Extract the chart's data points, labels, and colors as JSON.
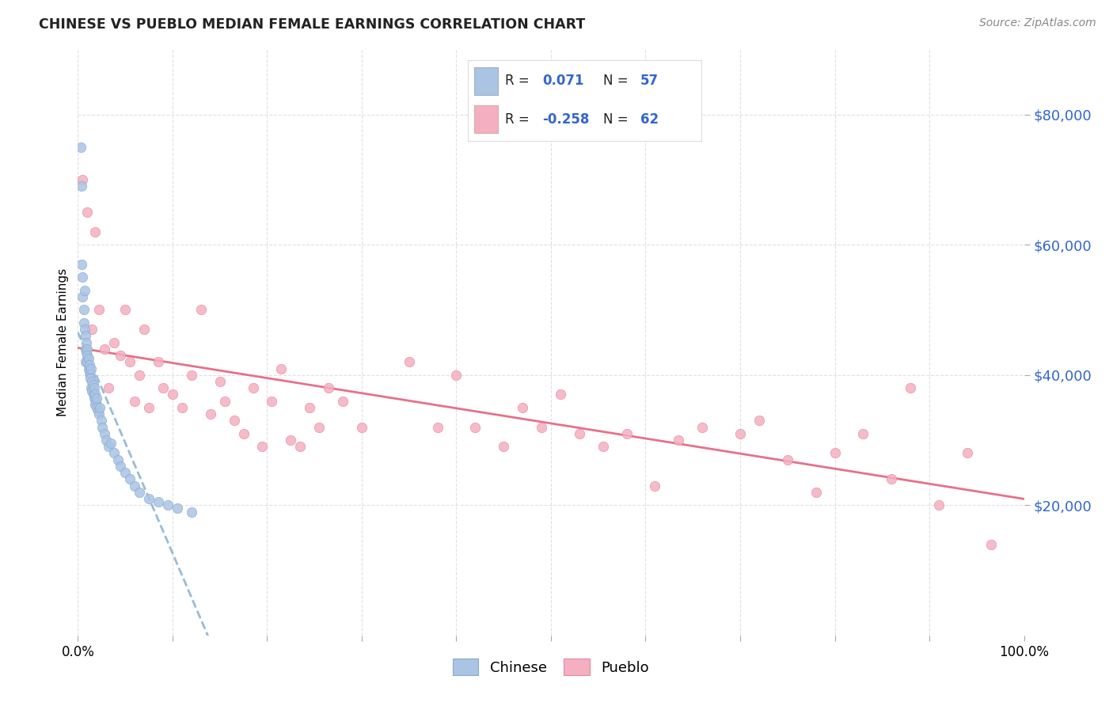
{
  "title": "CHINESE VS PUEBLO MEDIAN FEMALE EARNINGS CORRELATION CHART",
  "source": "Source: ZipAtlas.com",
  "ylabel": "Median Female Earnings",
  "y_ticks": [
    20000,
    40000,
    60000,
    80000
  ],
  "y_tick_labels": [
    "$20,000",
    "$40,000",
    "$60,000",
    "$80,000"
  ],
  "xlim": [
    0.0,
    1.0
  ],
  "ylim": [
    0,
    90000
  ],
  "chinese_color": "#aac4e4",
  "pueblo_color": "#f4b0c0",
  "chinese_edge": "#88aacc",
  "pueblo_edge": "#e888a0",
  "chinese_R": 0.071,
  "chinese_N": 57,
  "pueblo_R": -0.258,
  "pueblo_N": 62,
  "trend_blue_color": "#99bbd8",
  "trend_pink_color": "#e8708a",
  "legend_label_chinese": "Chinese",
  "legend_label_pueblo": "Pueblo",
  "chinese_x": [
    0.003,
    0.004,
    0.004,
    0.005,
    0.005,
    0.006,
    0.006,
    0.007,
    0.007,
    0.008,
    0.008,
    0.008,
    0.009,
    0.009,
    0.01,
    0.01,
    0.01,
    0.011,
    0.011,
    0.012,
    0.012,
    0.013,
    0.013,
    0.014,
    0.014,
    0.015,
    0.015,
    0.016,
    0.016,
    0.017,
    0.017,
    0.018,
    0.018,
    0.019,
    0.02,
    0.02,
    0.021,
    0.022,
    0.023,
    0.025,
    0.026,
    0.028,
    0.03,
    0.032,
    0.035,
    0.038,
    0.042,
    0.045,
    0.05,
    0.055,
    0.06,
    0.065,
    0.075,
    0.085,
    0.095,
    0.105,
    0.12
  ],
  "chinese_y": [
    75000,
    69000,
    57000,
    55000,
    52000,
    50000,
    48000,
    47000,
    53000,
    46000,
    44000,
    42000,
    43500,
    45000,
    44000,
    43000,
    42000,
    41000,
    42500,
    40500,
    41500,
    40000,
    39500,
    41000,
    38000,
    39000,
    37500,
    38500,
    37000,
    36500,
    38000,
    37000,
    35500,
    36000,
    35000,
    36500,
    34500,
    34000,
    35000,
    33000,
    32000,
    31000,
    30000,
    29000,
    29500,
    28000,
    27000,
    26000,
    25000,
    24000,
    23000,
    22000,
    21000,
    20500,
    20000,
    19500,
    19000
  ],
  "pueblo_x": [
    0.005,
    0.01,
    0.015,
    0.018,
    0.022,
    0.028,
    0.032,
    0.038,
    0.045,
    0.05,
    0.055,
    0.06,
    0.065,
    0.07,
    0.075,
    0.085,
    0.09,
    0.1,
    0.11,
    0.12,
    0.13,
    0.14,
    0.15,
    0.155,
    0.165,
    0.175,
    0.185,
    0.195,
    0.205,
    0.215,
    0.225,
    0.235,
    0.245,
    0.255,
    0.265,
    0.28,
    0.3,
    0.35,
    0.38,
    0.4,
    0.42,
    0.45,
    0.47,
    0.49,
    0.51,
    0.53,
    0.555,
    0.58,
    0.61,
    0.635,
    0.66,
    0.7,
    0.72,
    0.75,
    0.78,
    0.8,
    0.83,
    0.86,
    0.88,
    0.91,
    0.94,
    0.965
  ],
  "pueblo_y": [
    70000,
    65000,
    47000,
    62000,
    50000,
    44000,
    38000,
    45000,
    43000,
    50000,
    42000,
    36000,
    40000,
    47000,
    35000,
    42000,
    38000,
    37000,
    35000,
    40000,
    50000,
    34000,
    39000,
    36000,
    33000,
    31000,
    38000,
    29000,
    36000,
    41000,
    30000,
    29000,
    35000,
    32000,
    38000,
    36000,
    32000,
    42000,
    32000,
    40000,
    32000,
    29000,
    35000,
    32000,
    37000,
    31000,
    29000,
    31000,
    23000,
    30000,
    32000,
    31000,
    33000,
    27000,
    22000,
    28000,
    31000,
    24000,
    38000,
    20000,
    28000,
    14000
  ]
}
